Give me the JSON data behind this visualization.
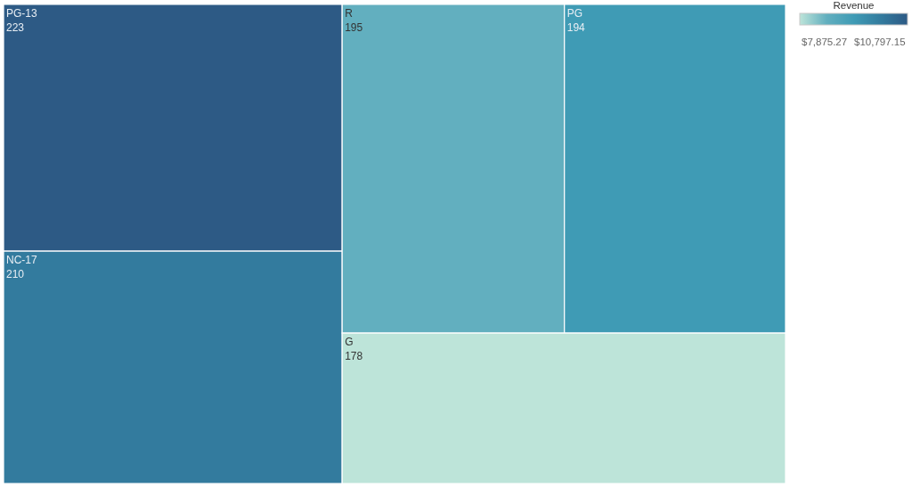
{
  "chart_data": {
    "type": "other",
    "categories": [
      "PG-13",
      "NC-17",
      "R",
      "PG",
      "G"
    ],
    "values": [
      223,
      210,
      195,
      194,
      178
    ],
    "data_labels": true,
    "colors": [
      "#2d5a85",
      "#337b9e",
      "#62afbf",
      "#3f9bb5",
      "#bde4d9"
    ],
    "clabel": "Revenue",
    "annotations": [
      "$7,875.27",
      "$10,797.15"
    ]
  }
}
